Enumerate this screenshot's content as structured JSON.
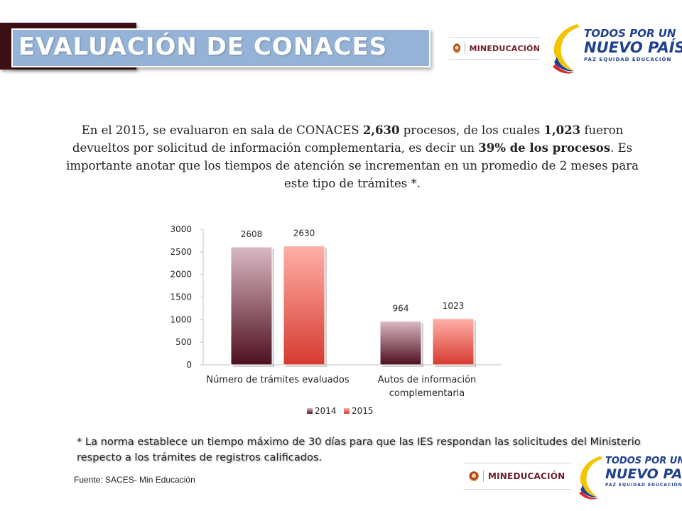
{
  "title": "EVALUACIÓN DE CONACES",
  "logos": {
    "mineducacion": "MINEDUCACIÓN",
    "todos_line1": "TODOS POR UN",
    "todos_line2": "NUEVO PAÍS",
    "todos_line3": "PAZ EQUIDAD EDUCACIÓN"
  },
  "intro": {
    "p1": "En el 2015, se evaluaron en sala de CONACES ",
    "b1": "2,630",
    "p2": " procesos, de los cuales ",
    "b2": "1,023",
    "p3": " fueron devueltos por solicitud de información complementaria, es decir un ",
    "b3": "39% de los procesos",
    "p4": ". Es importante anotar que los tiempos de atención se incrementan en un promedio de 2 meses para este tipo de trámites *."
  },
  "chart_data": {
    "type": "bar",
    "categories": [
      "Número de trámites evaluados",
      "Autos de información complementaria"
    ],
    "category_lines": [
      [
        "Número de trámites evaluados"
      ],
      [
        "Autos de información",
        "complementaria"
      ]
    ],
    "series": [
      {
        "name": "2014",
        "values": [
          2608,
          964
        ],
        "color_top": "#d9b9c3",
        "color_bottom": "#4e0f1f"
      },
      {
        "name": "2015",
        "values": [
          2630,
          1023
        ],
        "color_top": "#ffb0a8",
        "color_bottom": "#d63a2f"
      }
    ],
    "ylim": [
      0,
      3000
    ],
    "yticks": [
      0,
      500,
      1000,
      1500,
      2000,
      2500,
      3000
    ],
    "legend": "bottom",
    "grid": false
  },
  "footnote": "* La norma establece un tiempo máximo de 30 días para que las IES respondan las solicitudes del Ministerio respecto a los trámites de registros calificados.",
  "source": "Fuente: SACES- Min Educación"
}
